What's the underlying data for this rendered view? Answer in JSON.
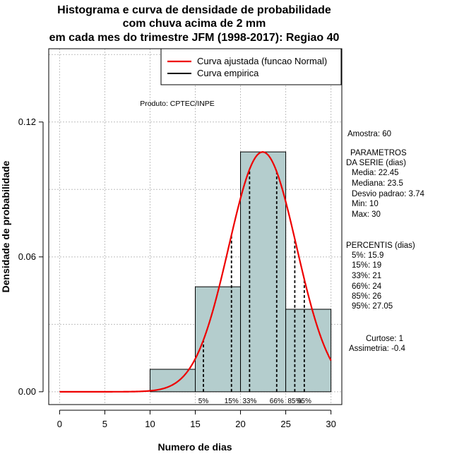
{
  "chart_data": {
    "type": "bar",
    "title_lines": [
      "Histograma e curva de densidade de probabilidade",
      "com chuva acima de 2 mm",
      "em cada mes do trimestre JFM (1998-2017): Regiao 40"
    ],
    "xlabel": "Numero de dias",
    "ylabel": "Densidade de probabilidade",
    "xlim": [
      -1.2,
      31.2
    ],
    "ylim": [
      -0.0057,
      0.1526
    ],
    "x_ticks": [
      0,
      5,
      10,
      15,
      20,
      25,
      30
    ],
    "x_tick_labels": [
      "0",
      "5",
      "10",
      "15",
      "20",
      "25",
      "30"
    ],
    "y_ticks": [
      0.0,
      0.06,
      0.12
    ],
    "y_tick_labels": [
      "0.00",
      "0.06",
      "0.12"
    ],
    "y_gridlines": [
      0.0,
      0.03,
      0.06,
      0.09,
      0.12,
      0.15
    ],
    "bins": [
      {
        "start": 10,
        "end": 15,
        "density": 0.01
      },
      {
        "start": 15,
        "end": 20,
        "density": 0.0467
      },
      {
        "start": 20,
        "end": 25,
        "density": 0.1067
      },
      {
        "start": 25,
        "end": 30,
        "density": 0.0367
      }
    ],
    "normal_fit": {
      "mean": 22.45,
      "sd": 3.74,
      "x_range": [
        0,
        30
      ]
    },
    "percentile_lines": [
      {
        "label": "5%",
        "value": 15.9
      },
      {
        "label": "15%",
        "value": 19
      },
      {
        "label": "33%",
        "value": 21
      },
      {
        "label": "66%",
        "value": 24
      },
      {
        "label": "85%",
        "value": 26
      },
      {
        "label": "95%",
        "value": 27.05
      }
    ],
    "legend": {
      "position": "top-right",
      "items": [
        {
          "label": "Curva ajustada (funcao Normal)",
          "color": "#ee0000"
        },
        {
          "label": "Curva empirica",
          "color": "#000000"
        }
      ]
    },
    "annotation": "Produto: CPTEC/INPE",
    "colors": {
      "bar_fill": "#b4cdcd",
      "curve": "#ee0000",
      "grid": "#bfbfbf"
    }
  },
  "stats_panel": {
    "sample": "Amostra: 60",
    "params_title_1": "PARAMETROS",
    "params_title_2": "DA SERIE (dias)",
    "params": [
      "Media: 22.45",
      "Mediana: 23.5",
      "Desvio padrao: 3.74",
      "Min: 10",
      "Max: 30"
    ],
    "percentiles_title": "PERCENTIS (dias)",
    "percentiles": [
      "5%: 15.9",
      "15%: 19",
      "33%: 21",
      "66%: 24",
      "85%: 26",
      "95%: 27.05"
    ],
    "kurtosis": "Curtose: 1",
    "skewness": "Assimetria: -0.4"
  }
}
